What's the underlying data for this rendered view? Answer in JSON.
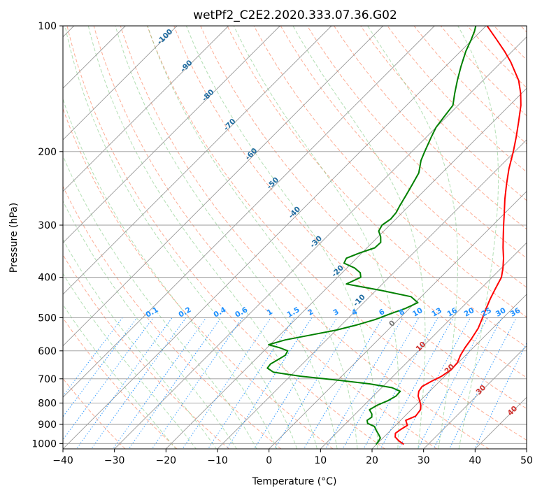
{
  "chart_data": {
    "type": "line",
    "title": "wetPf2_C2E2.2020.333.07.36.G02",
    "xlabel": "Temperature (°C)",
    "ylabel": "Pressure (hPa)",
    "xlim": [
      -40,
      50
    ],
    "ylim": [
      1030,
      100
    ],
    "y_scale": "log",
    "skew": true,
    "x_ticks": [
      "−40",
      "−30",
      "−20",
      "−10",
      "0",
      "10",
      "20",
      "30",
      "40",
      "50"
    ],
    "y_ticks": [
      "100",
      "200",
      "300",
      "400",
      "500",
      "600",
      "700",
      "800",
      "900",
      "1000"
    ],
    "grid": true,
    "series": [
      {
        "color": "#ff0000",
        "role": "temperature",
        "points": [
          [
            1005,
            25.3
          ],
          [
            985,
            23.6
          ],
          [
            965,
            22.2
          ],
          [
            945,
            21.5
          ],
          [
            925,
            21.8
          ],
          [
            905,
            22.3
          ],
          [
            880,
            21.0
          ],
          [
            860,
            22.1
          ],
          [
            830,
            21.8
          ],
          [
            810,
            21.0
          ],
          [
            790,
            19.9
          ],
          [
            770,
            18.7
          ],
          [
            750,
            17.9
          ],
          [
            730,
            17.6
          ],
          [
            710,
            18.4
          ],
          [
            690,
            19.4
          ],
          [
            665,
            20.0
          ],
          [
            640,
            19.8
          ],
          [
            615,
            19.0
          ],
          [
            590,
            18.4
          ],
          [
            560,
            17.9
          ],
          [
            530,
            17.2
          ],
          [
            500,
            16.0
          ],
          [
            475,
            14.9
          ],
          [
            450,
            13.8
          ],
          [
            425,
            12.8
          ],
          [
            400,
            11.8
          ],
          [
            380,
            10.3
          ],
          [
            360,
            8.5
          ],
          [
            340,
            6.4
          ],
          [
            320,
            4.3
          ],
          [
            300,
            2.1
          ],
          [
            280,
            -0.2
          ],
          [
            260,
            -2.7
          ],
          [
            240,
            -5.2
          ],
          [
            220,
            -7.8
          ],
          [
            200,
            -10.3
          ],
          [
            185,
            -12.5
          ],
          [
            170,
            -15.0
          ],
          [
            155,
            -17.8
          ],
          [
            145,
            -20.2
          ],
          [
            135,
            -23.1
          ],
          [
            128,
            -25.8
          ],
          [
            122,
            -28.2
          ],
          [
            115,
            -31.5
          ],
          [
            108,
            -35.2
          ],
          [
            100,
            -39.8
          ]
        ]
      },
      {
        "color": "#008000",
        "role": "dewpoint",
        "points": [
          [
            1005,
            19.9
          ],
          [
            990,
            19.8
          ],
          [
            970,
            19.5
          ],
          [
            950,
            18.4
          ],
          [
            930,
            17.2
          ],
          [
            910,
            16.1
          ],
          [
            895,
            14.2
          ],
          [
            880,
            13.5
          ],
          [
            865,
            13.8
          ],
          [
            850,
            13.2
          ],
          [
            830,
            11.9
          ],
          [
            810,
            12.5
          ],
          [
            790,
            13.7
          ],
          [
            770,
            14.4
          ],
          [
            750,
            14.3
          ],
          [
            735,
            12.0
          ],
          [
            720,
            7.0
          ],
          [
            705,
            0.0
          ],
          [
            690,
            -8.0
          ],
          [
            675,
            -14.0
          ],
          [
            660,
            -16.0
          ],
          [
            645,
            -16.2
          ],
          [
            630,
            -15.6
          ],
          [
            615,
            -15.0
          ],
          [
            600,
            -15.4
          ],
          [
            590,
            -17.5
          ],
          [
            580,
            -20.3
          ],
          [
            565,
            -18.0
          ],
          [
            550,
            -14.0
          ],
          [
            535,
            -10.0
          ],
          [
            520,
            -7.0
          ],
          [
            505,
            -4.5
          ],
          [
            490,
            -2.8
          ],
          [
            475,
            -0.8
          ],
          [
            460,
            0.5
          ],
          [
            445,
            -2.0
          ],
          [
            430,
            -9.0
          ],
          [
            415,
            -17.0
          ],
          [
            400,
            -15.5
          ],
          [
            390,
            -16.5
          ],
          [
            380,
            -18.5
          ],
          [
            370,
            -21.5
          ],
          [
            360,
            -22.0
          ],
          [
            350,
            -20.5
          ],
          [
            340,
            -18.5
          ],
          [
            330,
            -18.4
          ],
          [
            320,
            -19.5
          ],
          [
            310,
            -21.0
          ],
          [
            300,
            -21.5
          ],
          [
            290,
            -21.0
          ],
          [
            280,
            -21.2
          ],
          [
            270,
            -21.8
          ],
          [
            255,
            -22.6
          ],
          [
            240,
            -23.5
          ],
          [
            225,
            -24.5
          ],
          [
            210,
            -26.5
          ],
          [
            200,
            -27.5
          ],
          [
            185,
            -29.0
          ],
          [
            175,
            -30.0
          ],
          [
            165,
            -30.5
          ],
          [
            155,
            -31.0
          ],
          [
            145,
            -33.0
          ],
          [
            135,
            -35.0
          ],
          [
            125,
            -37.0
          ],
          [
            115,
            -39.0
          ],
          [
            108,
            -40.2
          ],
          [
            103,
            -41.2
          ],
          [
            100,
            -42.0
          ]
        ]
      }
    ],
    "annotations": {
      "dry_adiabat_labels": [
        "-100",
        "-90",
        "-80",
        "-70",
        "-60",
        "-50",
        "-40",
        "-30",
        "-20",
        "-10"
      ],
      "mixing_ratio_labels": [
        "0.1",
        "0.2",
        "0.4",
        "0.6",
        "1",
        "1.5",
        "2",
        "3",
        "4",
        "6",
        "8",
        "10",
        "13",
        "16",
        "20",
        "25",
        "30",
        "36"
      ],
      "moist_adiabat_labels": [
        "0",
        "10",
        "20",
        "30",
        "40"
      ]
    }
  }
}
